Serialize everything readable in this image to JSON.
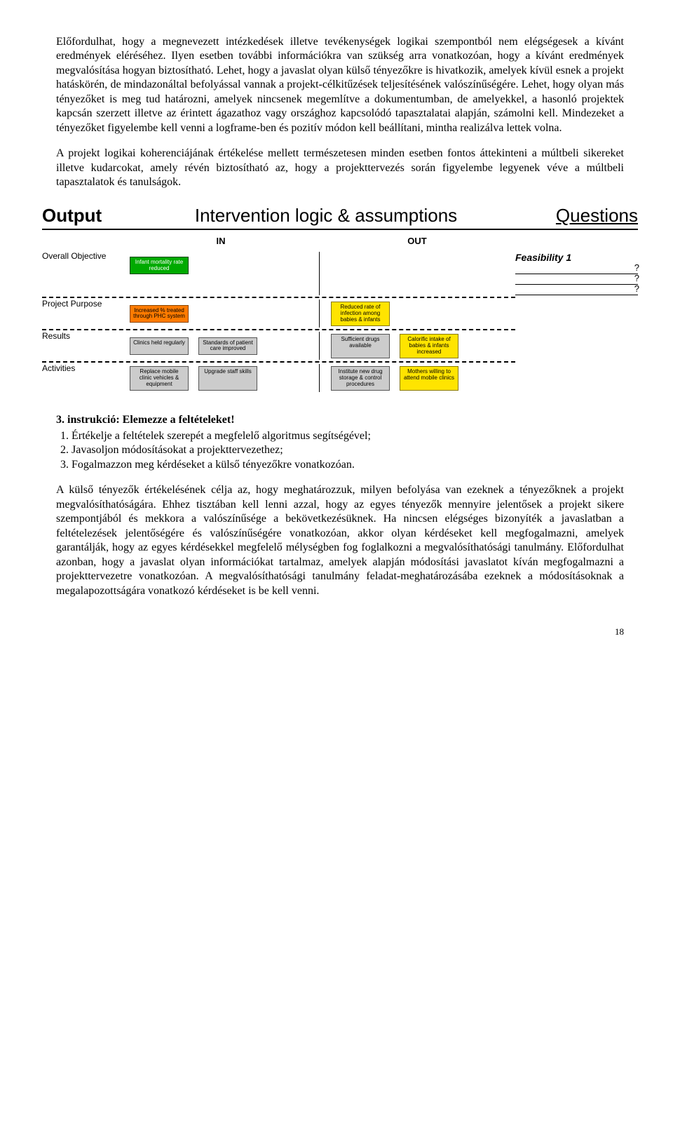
{
  "para1": "Előfordulhat, hogy a megnevezett intézkedések illetve tevékenységek logikai szempontból nem elégségesek a kívánt eredmények eléréséhez. Ilyen esetben további információkra van szükség arra vonatkozóan, hogy a kívánt eredmények megvalósítása hogyan biztosítható. Lehet, hogy a javaslat olyan külső tényezőkre is hivatkozik, amelyek kívül esnek a projekt hatáskörén, de mindazonáltal befolyással vannak a projekt-célkitűzések teljesítésének valószínűségére. Lehet, hogy olyan más tényezőket is meg tud határozni, amelyek nincsenek megemlítve a dokumentumban, de amelyekkel, a hasonló projektek kapcsán szerzett illetve az érintett ágazathoz vagy országhoz kapcsolódó tapasztalatai alapján, számolni kell. Mindezeket a tényezőket figyelembe kell venni a logframe-ben és pozitív módon kell beállítani, mintha realizálva lettek volna.",
  "para2": "A projekt logikai koherenciájának értékelése mellett természetesen minden esetben fontos áttekinteni a múltbeli sikereket illetve kudarcokat, amely révén biztosítható az, hogy a projekttervezés során figyelembe legyenek véve a múltbeli tapasztalatok és tanulságok.",
  "diagram": {
    "header": {
      "output": "Output",
      "center": "Intervention logic & assumptions",
      "questions": "Questions"
    },
    "inout": {
      "in": "IN",
      "out": "OUT"
    },
    "rows": [
      {
        "label": "Overall Objective",
        "in": [
          {
            "text": "Infant mortality rate reduced",
            "cls": "box-green"
          }
        ],
        "out": []
      },
      {
        "label": "Project Purpose",
        "in": [
          {
            "text": "Increased % treated through PHC system",
            "cls": "box-orange"
          }
        ],
        "out": [
          {
            "text": "Reduced rate of infection among babies & infants",
            "cls": "box-yellow"
          }
        ]
      },
      {
        "label": "Results",
        "in": [
          {
            "text": "Clinics held regularly",
            "cls": "box-gray"
          },
          {
            "text": "Standards of patient care improved",
            "cls": "box-gray"
          }
        ],
        "out": [
          {
            "text": "Sufficient drugs available",
            "cls": "box-gray"
          },
          {
            "text": "Calorific intake of babies & infants increased",
            "cls": "box-yellow"
          }
        ]
      },
      {
        "label": "Activities",
        "in": [
          {
            "text": "Replace mobile clinic vehicles & equipment",
            "cls": "box-gray"
          },
          {
            "text": "Upgrade staff skills",
            "cls": "box-gray"
          }
        ],
        "out": [
          {
            "text": "Institute new drug storage & control procedures",
            "cls": "box-gray"
          },
          {
            "text": "Mothers willing to attend mobile clinics",
            "cls": "box-yellow"
          }
        ]
      }
    ],
    "feasibility": {
      "title": "Feasibility 1",
      "lines": 3
    }
  },
  "instr_title": "3. instrukció: Elemezze a feltételeket!",
  "instr_items": [
    "Értékelje a feltételek szerepét a megfelelő algoritmus segítségével;",
    "Javasoljon módosításokat a projekttervezethez;",
    "Fogalmazzon meg kérdéseket a külső tényezőkre vonatkozóan."
  ],
  "para3": "A külső tényezők értékelésének célja az, hogy meghatározzuk, milyen befolyása van ezeknek a tényezőknek a projekt megvalósíthatóságára. Ehhez tisztában kell lenni azzal, hogy az egyes tényezők mennyire jelentősek a projekt sikere szempontjából és mekkora a valószínűsége a bekövetkezésüknek. Ha nincsen elégséges bizonyíték a javaslatban a feltételezések jelentőségére és valószínűségére vonatkozóan, akkor olyan kérdéseket kell megfogalmazni, amelyek garantálják, hogy az egyes kérdésekkel megfelelő mélységben fog foglalkozni a megvalósíthatósági tanulmány. Előfordulhat azonban, hogy a javaslat olyan információkat tartalmaz, amelyek alapján módosítási javaslatot kíván megfogalmazni a projekttervezetre vonatkozóan. A megvalósíthatósági tanulmány feladat-meghatározásába ezeknek a módosításoknak a megalapozottságára vonatkozó kérdéseket is be kell venni.",
  "page_number": "18"
}
